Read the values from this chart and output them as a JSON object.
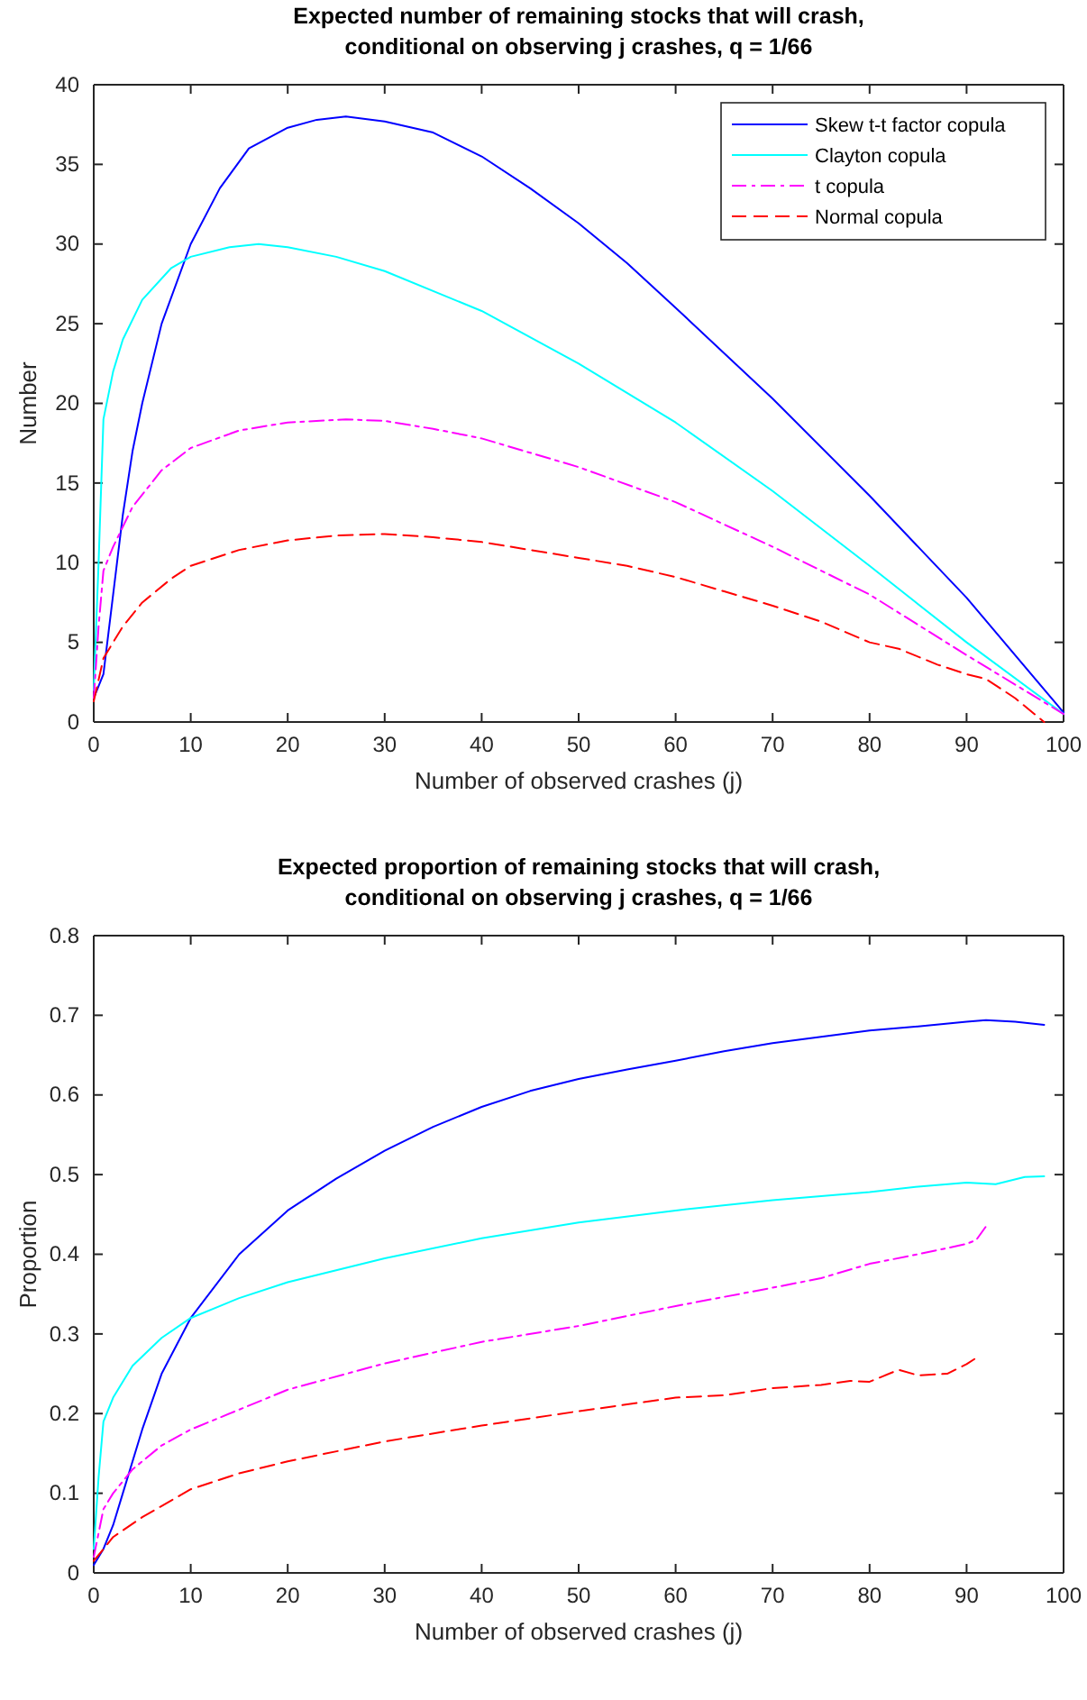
{
  "chart_data": [
    {
      "type": "line",
      "title": "Expected number of remaining stocks that will crash,\nconditional on observing j crashes, q = 1/66",
      "xlabel": "Number of observed crashes (j)",
      "ylabel": "Number",
      "xlim": [
        0,
        100
      ],
      "xticks": [
        0,
        10,
        20,
        30,
        40,
        50,
        60,
        70,
        80,
        90,
        100
      ],
      "ylim": [
        0,
        40
      ],
      "yticks": [
        0,
        5,
        10,
        15,
        20,
        25,
        30,
        35,
        40
      ],
      "grid": false,
      "legend": "top right",
      "series": [
        {
          "name": "Skew t-t factor copula",
          "color": "#0000ff",
          "line_style": "solid",
          "x": [
            0,
            1,
            2,
            3,
            4,
            5,
            7,
            10,
            13,
            16,
            20,
            23,
            26,
            30,
            35,
            40,
            45,
            50,
            55,
            60,
            70,
            80,
            90,
            100
          ],
          "values": [
            1.5,
            3,
            8,
            13,
            17,
            20,
            25,
            30,
            33.5,
            36,
            37.3,
            37.8,
            38,
            37.7,
            37,
            35.5,
            33.5,
            31.3,
            28.8,
            26,
            20.3,
            14.2,
            7.8,
            0.6
          ]
        },
        {
          "name": "Clayton copula",
          "color": "#00ffff",
          "line_style": "solid",
          "x": [
            0,
            0.5,
            1,
            2,
            3,
            5,
            8,
            10,
            14,
            17,
            20,
            25,
            30,
            40,
            50,
            60,
            70,
            80,
            90,
            100
          ],
          "values": [
            2,
            10,
            19,
            22,
            24,
            26.5,
            28.5,
            29.2,
            29.8,
            30,
            29.8,
            29.2,
            28.3,
            25.8,
            22.5,
            18.8,
            14.5,
            9.8,
            5,
            0.5
          ]
        },
        {
          "name": "t copula",
          "color": "#ff00ff",
          "line_style": "dashdot",
          "x": [
            0,
            0.5,
            1,
            2,
            4,
            7,
            10,
            15,
            20,
            26,
            30,
            35,
            40,
            50,
            60,
            70,
            80,
            90,
            100
          ],
          "values": [
            1.5,
            6,
            9.5,
            11,
            13.5,
            15.8,
            17.2,
            18.3,
            18.8,
            19,
            18.9,
            18.4,
            17.8,
            16,
            13.8,
            11,
            8,
            4.2,
            0.5
          ]
        },
        {
          "name": "Normal copula",
          "color": "#ff0000",
          "line_style": "dashed",
          "x": [
            0,
            1,
            3,
            5,
            8,
            10,
            15,
            20,
            25,
            30,
            35,
            40,
            45,
            50,
            55,
            60,
            65,
            70,
            75,
            80,
            83,
            87,
            90,
            92,
            95,
            98
          ],
          "values": [
            1.3,
            4,
            6,
            7.5,
            9,
            9.8,
            10.8,
            11.4,
            11.7,
            11.8,
            11.6,
            11.3,
            10.8,
            10.3,
            9.8,
            9.1,
            8.2,
            7.3,
            6.3,
            5,
            4.6,
            3.6,
            3,
            2.7,
            1.5,
            0
          ]
        }
      ]
    },
    {
      "type": "line",
      "title": "Expected proportion of remaining stocks that will crash,\nconditional on observing j crashes, q = 1/66",
      "xlabel": "Number of observed crashes (j)",
      "ylabel": "Proportion",
      "xlim": [
        0,
        100
      ],
      "xticks": [
        0,
        10,
        20,
        30,
        40,
        50,
        60,
        70,
        80,
        90,
        100
      ],
      "ylim": [
        0,
        0.8
      ],
      "yticks": [
        0,
        0.1,
        0.2,
        0.3,
        0.4,
        0.5,
        0.6,
        0.7,
        0.8
      ],
      "grid": false,
      "legend": false,
      "series": [
        {
          "color": "#0000ff",
          "line_style": "solid",
          "x": [
            0,
            1,
            2,
            3,
            5,
            7,
            10,
            15,
            20,
            25,
            30,
            35,
            40,
            45,
            50,
            55,
            60,
            65,
            70,
            75,
            80,
            85,
            90,
            92,
            95,
            98
          ],
          "values": [
            0.01,
            0.03,
            0.06,
            0.1,
            0.18,
            0.25,
            0.32,
            0.4,
            0.455,
            0.495,
            0.53,
            0.56,
            0.585,
            0.605,
            0.62,
            0.632,
            0.643,
            0.655,
            0.665,
            0.673,
            0.681,
            0.686,
            0.692,
            0.694,
            0.692,
            0.688
          ]
        },
        {
          "color": "#00ffff",
          "line_style": "solid",
          "x": [
            0,
            0.5,
            1,
            2,
            4,
            7,
            10,
            15,
            20,
            30,
            40,
            50,
            60,
            70,
            80,
            85,
            90,
            93,
            96,
            98
          ],
          "values": [
            0.03,
            0.12,
            0.19,
            0.22,
            0.26,
            0.295,
            0.32,
            0.345,
            0.365,
            0.395,
            0.42,
            0.44,
            0.455,
            0.468,
            0.478,
            0.485,
            0.49,
            0.488,
            0.497,
            0.498
          ]
        },
        {
          "color": "#ff00ff",
          "line_style": "dashdot",
          "x": [
            0,
            1,
            2,
            4,
            7,
            10,
            15,
            20,
            30,
            40,
            50,
            60,
            70,
            75,
            80,
            85,
            90,
            91,
            92
          ],
          "values": [
            0.02,
            0.08,
            0.1,
            0.13,
            0.16,
            0.18,
            0.205,
            0.23,
            0.263,
            0.29,
            0.31,
            0.335,
            0.358,
            0.37,
            0.388,
            0.4,
            0.413,
            0.418,
            0.435
          ]
        },
        {
          "color": "#ff0000",
          "line_style": "dashed",
          "x": [
            0,
            2,
            5,
            10,
            15,
            20,
            30,
            40,
            50,
            60,
            65,
            70,
            75,
            78,
            80,
            83,
            85,
            88,
            90,
            91
          ],
          "values": [
            0.015,
            0.045,
            0.07,
            0.105,
            0.125,
            0.14,
            0.165,
            0.185,
            0.203,
            0.22,
            0.223,
            0.232,
            0.236,
            0.241,
            0.24,
            0.255,
            0.248,
            0.25,
            0.262,
            0.27
          ]
        }
      ]
    }
  ]
}
